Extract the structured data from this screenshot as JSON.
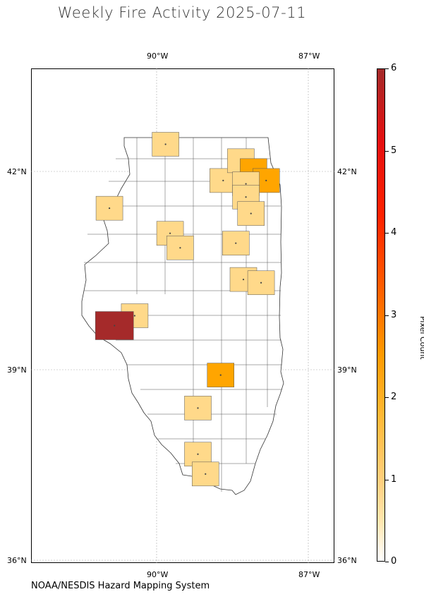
{
  "title": "Weekly Fire Activity 2025-07-11",
  "source": "NOAA/NESDIS Hazard Mapping System",
  "axes": {
    "top_lon_labels": [
      "90°W",
      "87°W"
    ],
    "bottom_lon_labels": [
      "90°W",
      "87°W"
    ],
    "left_lat_labels": [
      "42°N",
      "39°N",
      "36°N"
    ],
    "right_lat_labels": [
      "42°N",
      "39°N",
      "36°N"
    ],
    "grid": true
  },
  "colorbar": {
    "title": "Pixel Count",
    "ticks": [
      "0",
      "1",
      "2",
      "3",
      "4",
      "5",
      "6"
    ],
    "range": [
      0,
      6
    ],
    "colors": {
      "zero": "#ffffff",
      "one": "#ffd98a",
      "two": "#ffa500",
      "six": "#a52a2a"
    }
  },
  "chart_data": {
    "type": "choropleth",
    "region": "Illinois counties",
    "lon_range": [
      -92.5,
      -86.5
    ],
    "lat_range": [
      36.0,
      43.5
    ],
    "fill_by_count": {
      "0": "#ffffff",
      "1": "#ffd98a",
      "2": "#ffa500",
      "6": "#a52a2a"
    },
    "counties": [
      {
        "lon": -89.84,
        "lat": 42.35,
        "count": 1
      },
      {
        "lon": -88.7,
        "lat": 41.8,
        "count": 1
      },
      {
        "lon": -88.35,
        "lat": 42.1,
        "count": 1
      },
      {
        "lon": -88.1,
        "lat": 41.95,
        "count": 2
      },
      {
        "lon": -87.85,
        "lat": 41.8,
        "count": 2
      },
      {
        "lon": -88.25,
        "lat": 41.75,
        "count": 1
      },
      {
        "lon": -88.25,
        "lat": 41.55,
        "count": 1
      },
      {
        "lon": -88.15,
        "lat": 41.3,
        "count": 1
      },
      {
        "lon": -90.95,
        "lat": 41.38,
        "count": 1
      },
      {
        "lon": -89.75,
        "lat": 41.0,
        "count": 1
      },
      {
        "lon": -89.55,
        "lat": 40.78,
        "count": 1
      },
      {
        "lon": -88.45,
        "lat": 40.85,
        "count": 1
      },
      {
        "lon": -88.3,
        "lat": 40.3,
        "count": 1
      },
      {
        "lon": -87.95,
        "lat": 40.25,
        "count": 1
      },
      {
        "lon": -90.45,
        "lat": 39.75,
        "count": 1
      },
      {
        "lon": -90.85,
        "lat": 39.6,
        "count": 6
      },
      {
        "lon": -88.75,
        "lat": 38.85,
        "count": 2
      },
      {
        "lon": -89.2,
        "lat": 38.35,
        "count": 1
      },
      {
        "lon": -89.2,
        "lat": 37.65,
        "count": 1
      },
      {
        "lon": -89.05,
        "lat": 37.35,
        "count": 1
      }
    ]
  }
}
